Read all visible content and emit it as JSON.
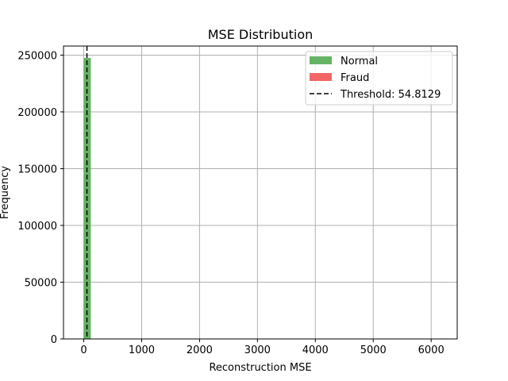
{
  "chart_data": {
    "type": "bar",
    "title": "MSE Distribution",
    "xlabel": "Reconstruction MSE",
    "ylabel": "Frequency",
    "xlim": [
      -350,
      6450
    ],
    "ylim": [
      0,
      258000
    ],
    "xticks": [
      0,
      1000,
      2000,
      3000,
      4000,
      5000,
      6000
    ],
    "yticks": [
      0,
      50000,
      100000,
      150000,
      200000,
      250000
    ],
    "grid": true,
    "legend_position": "top-right",
    "series": [
      {
        "name": "Normal",
        "color": "#66b366",
        "bins": [
          {
            "x0": 0,
            "x1": 122,
            "count": 247500
          }
        ]
      },
      {
        "name": "Fraud",
        "color": "#f26666",
        "bins": []
      }
    ],
    "threshold": {
      "label": "Threshold: 54.8129",
      "value": 54.8129,
      "color": "#000000"
    }
  }
}
